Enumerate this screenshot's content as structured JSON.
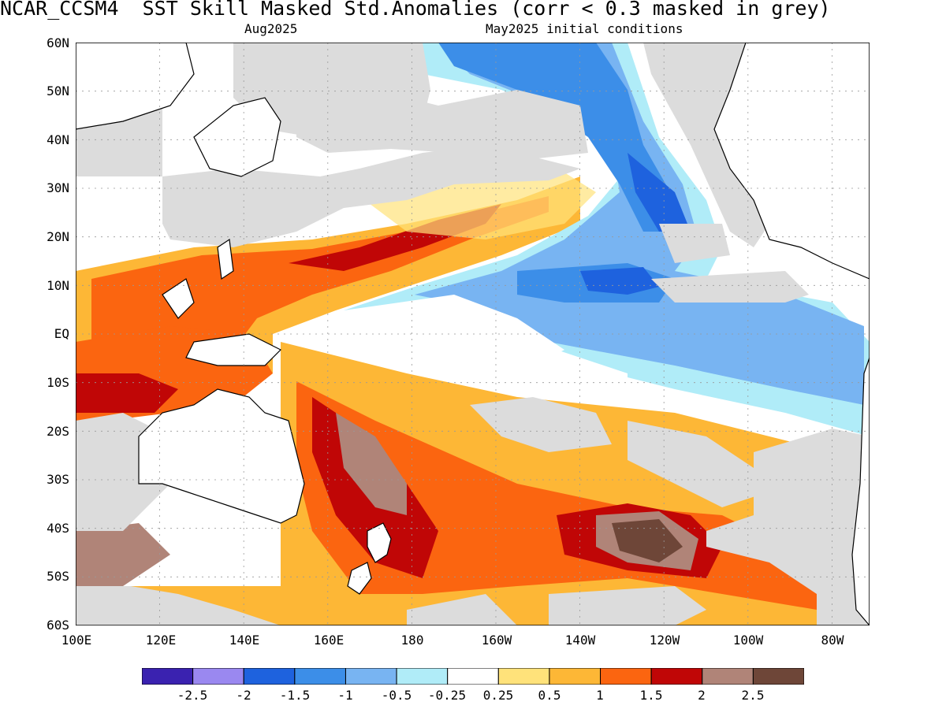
{
  "header": {
    "title": "NCAR_CCSM4  SST Skill Masked Std.Anomalies (corr < 0.3 masked in grey)",
    "valid_month": "Aug2025",
    "init": "May2025 initial conditions"
  },
  "axes": {
    "lat_labels": [
      "60N",
      "50N",
      "40N",
      "30N",
      "20N",
      "10N",
      "EQ",
      "10S",
      "20S",
      "30S",
      "40S",
      "50S",
      "60S"
    ],
    "lon_labels": [
      "100E",
      "120E",
      "140E",
      "160E",
      "180",
      "160W",
      "140W",
      "120W",
      "100W",
      "80W"
    ]
  },
  "colorbar": {
    "bins": [
      {
        "color": "#3a22b0"
      },
      {
        "color": "#9a88f0"
      },
      {
        "color": "#1e62de"
      },
      {
        "color": "#3c8ee8"
      },
      {
        "color": "#78b4f2"
      },
      {
        "color": "#b0ecf8"
      },
      {
        "color": "#ffffff"
      },
      {
        "color": "#ffe27a"
      },
      {
        "color": "#fdb736"
      },
      {
        "color": "#fb6510"
      },
      {
        "color": "#c00606"
      },
      {
        "color": "#b08478"
      },
      {
        "color": "#6e4638"
      }
    ],
    "labels": [
      "-2.5",
      "-2",
      "-1.5",
      "-1",
      "-0.5",
      "-0.25",
      "0.25",
      "0.5",
      "1",
      "1.5",
      "2",
      "2.5"
    ]
  },
  "mask_color": "#dcdcdc"
}
